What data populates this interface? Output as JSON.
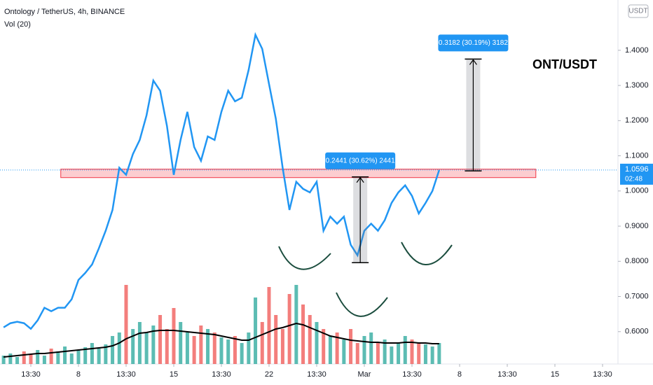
{
  "chart_data": {
    "type": "line",
    "title": "Ontology / TetherUS, 4h, BINANCE",
    "volume_label": "Vol (20)",
    "symbol_label": "ONT/USDT",
    "currency_label": "USDT",
    "color": "#2196f3",
    "x": [
      2.5,
      3,
      3.5,
      4,
      4.5,
      5,
      5.5,
      6,
      6.5,
      7,
      7.5,
      8,
      8.5,
      9,
      9.5,
      10,
      10.5,
      11,
      11.5,
      12,
      12.5,
      13,
      13.5,
      14,
      14.5,
      15,
      15.5,
      16,
      16.5,
      17,
      17.5,
      18,
      18.5,
      19,
      19.5,
      20,
      20.5,
      21,
      21.5,
      22,
      22.5,
      23,
      23.5,
      24,
      24.5,
      25,
      25.5,
      26,
      26.5,
      27,
      27.5,
      28,
      28.5,
      29,
      29.5,
      30,
      30.5,
      31,
      31.5,
      32,
      32.5,
      33,
      33.5,
      34,
      34.5
    ],
    "values": [
      0.612,
      0.624,
      0.628,
      0.624,
      0.608,
      0.632,
      0.668,
      0.658,
      0.668,
      0.668,
      0.692,
      0.747,
      0.767,
      0.791,
      0.837,
      0.887,
      0.946,
      1.066,
      1.046,
      1.105,
      1.145,
      1.215,
      1.314,
      1.285,
      1.185,
      1.046,
      1.145,
      1.225,
      1.125,
      1.086,
      1.155,
      1.145,
      1.225,
      1.285,
      1.255,
      1.265,
      1.344,
      1.444,
      1.404,
      1.304,
      1.205,
      1.066,
      0.946,
      1.026,
      1.006,
      0.996,
      1.026,
      0.887,
      0.927,
      0.907,
      0.927,
      0.847,
      0.817,
      0.887,
      0.907,
      0.887,
      0.917,
      0.966,
      0.996,
      1.016,
      0.986,
      0.936,
      0.966,
      1.0,
      1.0596
    ],
    "volume": [
      12,
      15,
      10,
      18,
      14,
      20,
      12,
      22,
      18,
      25,
      15,
      20,
      24,
      30,
      22,
      28,
      40,
      45,
      113,
      50,
      60,
      45,
      55,
      70,
      50,
      80,
      60,
      45,
      40,
      55,
      50,
      45,
      38,
      35,
      40,
      30,
      45,
      95,
      60,
      110,
      70,
      50,
      100,
      113,
      85,
      70,
      60,
      50,
      40,
      45,
      35,
      50,
      30,
      40,
      45,
      30,
      35,
      25,
      30,
      40,
      35,
      30,
      28,
      25,
      30
    ],
    "volume_ma": [
      10,
      11,
      12,
      13,
      14,
      15,
      15,
      16,
      17,
      18,
      19,
      20,
      21,
      22,
      23,
      24,
      26,
      30,
      36,
      40,
      44,
      45,
      47,
      48,
      48,
      48,
      47,
      46,
      45,
      44,
      43,
      42,
      40,
      38,
      36,
      34,
      34,
      38,
      42,
      46,
      50,
      52,
      55,
      58,
      56,
      52,
      48,
      44,
      40,
      38,
      36,
      34,
      33,
      32,
      31,
      31,
      30,
      30,
      30,
      31,
      31,
      30,
      30,
      29,
      29
    ],
    "up_color": "#26a69a",
    "down_color": "#ef5350",
    "xlim": [
      2.236,
      47.53
    ],
    "xticks": [
      {
        "value": 4.5,
        "label": "13:30"
      },
      8,
      {
        "value": 11.5,
        "label": "13:30"
      },
      15,
      {
        "value": 18.5,
        "label": "13:30"
      },
      22,
      {
        "value": 25.5,
        "label": "13:30"
      },
      {
        "value": 29,
        "label": "Mar"
      },
      {
        "value": 32.5,
        "label": "13:30"
      },
      {
        "value": 36,
        "label": "8"
      },
      {
        "value": 39.5,
        "label": "13:30"
      },
      {
        "value": 43,
        "label": "15"
      },
      {
        "value": 46.5,
        "label": "13:30"
      }
    ],
    "ylim": [
      0.508,
      1.543
    ],
    "y2lim": [
      0,
      520
    ],
    "yticks": [
      {
        "value": 0.6,
        "label": "0.6000"
      },
      {
        "value": 0.7,
        "label": "0.7000"
      },
      {
        "value": 0.8,
        "label": "0.8000"
      },
      {
        "value": 0.9,
        "label": "0.9000"
      },
      {
        "value": 1.0,
        "label": "1.0000"
      },
      {
        "value": 1.1,
        "label": "1.1000"
      },
      {
        "value": 1.2,
        "label": "1.2000"
      },
      {
        "value": 1.3,
        "label": "1.3000"
      },
      {
        "value": 1.4,
        "label": "1.4000"
      }
    ],
    "last_price": {
      "value": 1.0596,
      "label": "1.0596",
      "countdown": "02:48"
    },
    "zone": {
      "from": 1.038,
      "to": 1.062,
      "x": [
        6.7,
        41.6
      ]
    },
    "measures": [
      {
        "x": 28.7,
        "from": 0.796,
        "to": 1.04,
        "label": "0.2441 (30.62%) 2441"
      },
      {
        "x": 37.0,
        "from": 1.057,
        "to": 1.375,
        "label": "0.3182 (30.19%) 3182"
      }
    ]
  }
}
